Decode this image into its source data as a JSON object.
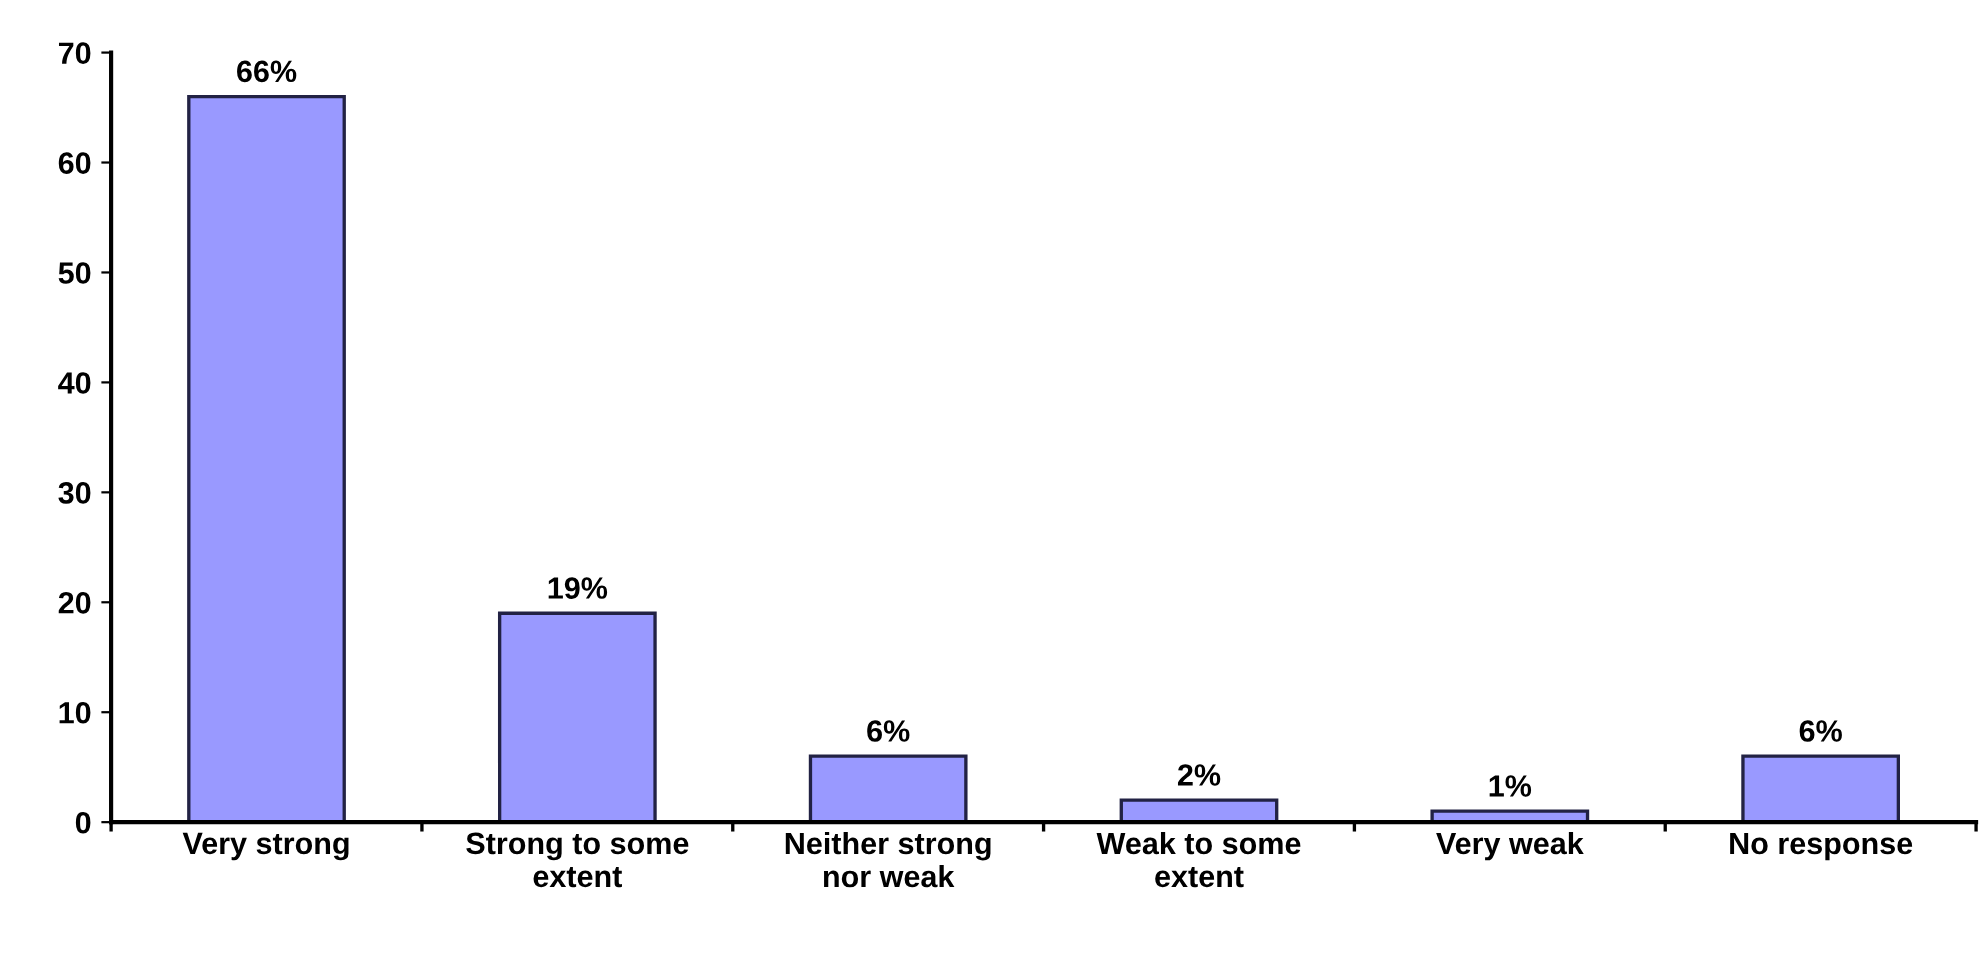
{
  "chart_data": {
    "type": "bar",
    "categories": [
      "Very strong",
      "Strong to some\nextent",
      "Neither strong\nnor weak",
      "Weak to some\nextent",
      "Very weak",
      "No response"
    ],
    "values": [
      66,
      19,
      6,
      2,
      1,
      6
    ],
    "value_labels": [
      "66%",
      "19%",
      "6%",
      "2%",
      "1%",
      "6%"
    ],
    "color": "#9999ff",
    "ylim": [
      0,
      70
    ],
    "yticks": [
      0,
      10,
      20,
      30,
      40,
      50,
      60,
      70
    ],
    "grid": false
  }
}
